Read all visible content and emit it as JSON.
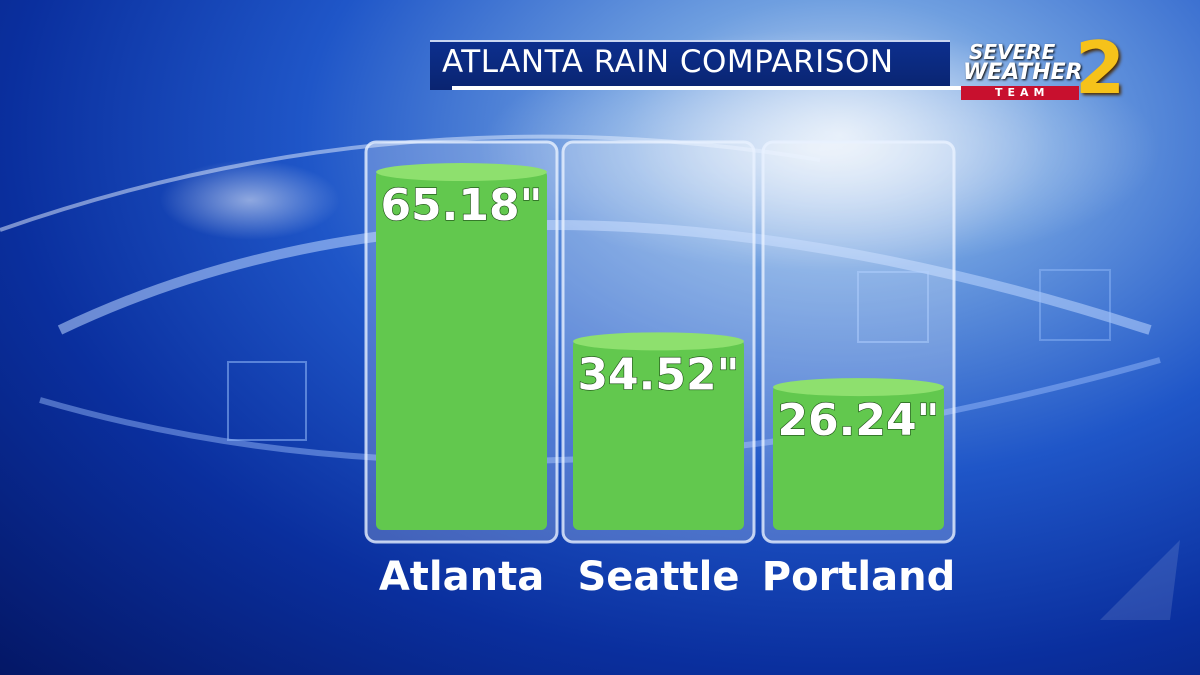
{
  "title": "ATLANTA RAIN COMPARISON",
  "logo": {
    "line1": "SEVERE",
    "line2": "WEATHER",
    "line3": "TEAM",
    "number": "2"
  },
  "colors": {
    "bar": "#62c84e",
    "bar_top": "#8ee06e",
    "title_bar": "#0c2f8e",
    "logo_red": "#c8102e",
    "logo_gold": "#f6c21a"
  },
  "chart_data": {
    "type": "bar",
    "title": "ATLANTA RAIN COMPARISON",
    "categories": [
      "Atlanta",
      "Seattle",
      "Portland"
    ],
    "values": [
      65.18,
      34.52,
      26.24
    ],
    "value_labels": [
      "65.18\"",
      "34.52\"",
      "26.24\""
    ],
    "ylim": [
      0,
      67
    ],
    "grid": false,
    "legend": "none"
  }
}
